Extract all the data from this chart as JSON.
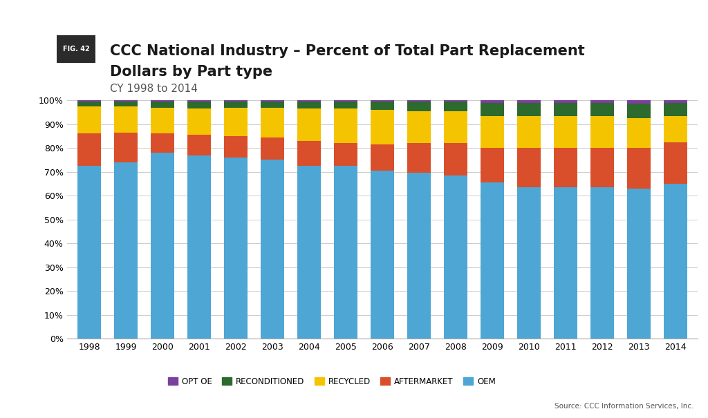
{
  "years": [
    1998,
    1999,
    2000,
    2001,
    2002,
    2003,
    2004,
    2005,
    2006,
    2007,
    2008,
    2009,
    2010,
    2011,
    2012,
    2013,
    2014
  ],
  "OEM": [
    72.5,
    74.0,
    78.0,
    77.0,
    76.0,
    75.0,
    72.5,
    72.5,
    70.5,
    69.5,
    68.5,
    65.5,
    63.5,
    63.5,
    63.5,
    63.0,
    65.0
  ],
  "AFTERMARKET": [
    13.5,
    12.5,
    8.0,
    8.5,
    9.0,
    9.5,
    10.5,
    9.5,
    11.0,
    12.5,
    13.5,
    14.5,
    16.5,
    16.5,
    16.5,
    17.0,
    17.5
  ],
  "RECYCLED": [
    11.5,
    11.0,
    11.0,
    11.0,
    12.0,
    12.5,
    13.5,
    14.5,
    14.5,
    13.5,
    13.5,
    13.5,
    13.5,
    13.5,
    13.5,
    12.5,
    11.0
  ],
  "RECONDITIONED": [
    2.0,
    2.0,
    2.5,
    3.0,
    2.5,
    2.5,
    3.0,
    3.0,
    3.5,
    4.0,
    4.0,
    5.5,
    5.5,
    5.5,
    5.5,
    6.0,
    5.5
  ],
  "OPT_OE": [
    0.5,
    0.5,
    0.5,
    0.5,
    0.5,
    0.5,
    0.5,
    0.5,
    0.5,
    0.5,
    0.5,
    1.0,
    1.0,
    1.0,
    1.0,
    1.5,
    1.0
  ],
  "colors": {
    "OEM": "#4DA6D4",
    "AFTERMARKET": "#D94F2B",
    "RECYCLED": "#F5C400",
    "RECONDITIONED": "#2D6A2D",
    "OPT_OE": "#7B3F9E"
  },
  "title_line1": "CCC National Industry – Percent of Total Part Replacement",
  "title_line2": "Dollars by Part type",
  "subtitle": "CY 1998 to 2014",
  "fig_label": "FIG. 42",
  "source_text": "Source: CCC Information Services, Inc.",
  "background_color": "#FFFFFF",
  "bar_width": 0.65,
  "ylim": [
    0,
    100
  ],
  "yticks": [
    0,
    10,
    20,
    30,
    40,
    50,
    60,
    70,
    80,
    90,
    100
  ]
}
